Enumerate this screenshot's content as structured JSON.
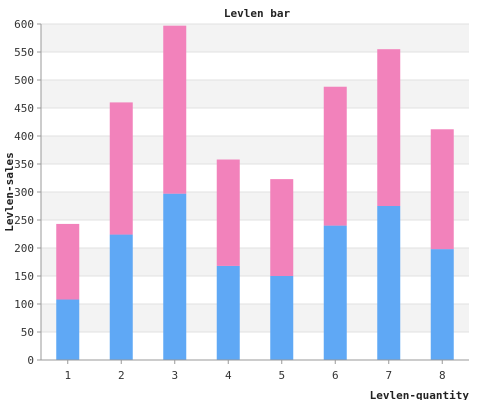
{
  "chart_data": {
    "type": "bar",
    "stacked": true,
    "title": "Levlen bar",
    "xlabel": "Levlen-quantity",
    "ylabel": "Levlen-sales",
    "categories": [
      "1",
      "2",
      "3",
      "4",
      "5",
      "6",
      "7",
      "8"
    ],
    "series": [
      {
        "values": [
          108,
          224,
          297,
          168,
          150,
          240,
          275,
          198
        ],
        "color": "#5fa8f5"
      },
      {
        "values": [
          135,
          236,
          300,
          190,
          173,
          248,
          280,
          214
        ],
        "color": "#f282bb"
      }
    ],
    "ylim": [
      0,
      600
    ],
    "yticks": [
      0,
      50,
      100,
      150,
      200,
      250,
      300,
      350,
      400,
      450,
      500,
      550,
      600
    ],
    "grid": true,
    "legend": "none"
  }
}
